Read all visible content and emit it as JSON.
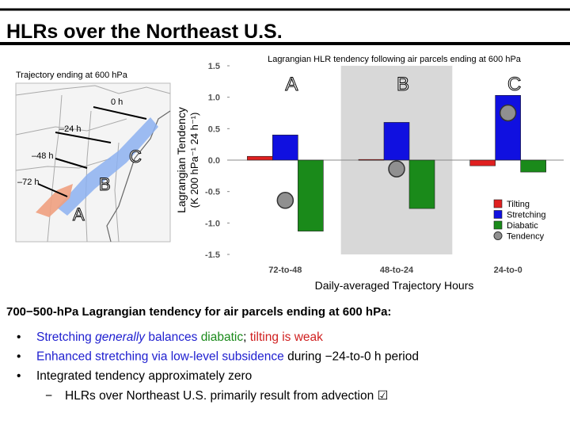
{
  "slide": {
    "title": "HLRs over the Northeast U.S.",
    "heading": "700−500-hPa Lagrangian tendency for air parcels ending at 600 hPa:",
    "bullets": [
      {
        "segments": [
          {
            "text": "Stretching ",
            "color": "#2020d0"
          },
          {
            "text": "generally",
            "color": "#2020d0",
            "italic": true
          },
          {
            "text": " balances ",
            "color": "#2020d0"
          },
          {
            "text": "diabatic",
            "color": "#1a8a1a"
          },
          {
            "text": "; ",
            "color": "#000000"
          },
          {
            "text": "tilting is weak",
            "color": "#d02020"
          }
        ]
      },
      {
        "segments": [
          {
            "text": "Enhanced stretching via low-level subsidence",
            "color": "#2020d0"
          },
          {
            "text": " during −24-to-0 h period",
            "color": "#000000"
          }
        ]
      },
      {
        "segments": [
          {
            "text": "Integrated tendency approximately zero",
            "color": "#000000"
          }
        ]
      }
    ],
    "sub_bullets": [
      {
        "segments": [
          {
            "text": "HLRs over Northeast U.S. primarily result from advection ☑",
            "color": "#000000"
          }
        ]
      }
    ]
  },
  "map": {
    "title": "Trajectory ending at 600 hPa",
    "time_labels": [
      "0 h",
      "–24 h",
      "–48 h",
      "–72 h"
    ],
    "region_labels": [
      "A",
      "B",
      "C"
    ]
  },
  "chart_data": {
    "type": "bar",
    "title": "Lagrangian HLR tendency following air parcels ending at 600 hPa",
    "xlabel": "Daily-averaged Trajectory Hours",
    "ylabel": [
      "Lagrangian Tendency",
      "(K 200 hPa⁻¹ 24 h⁻¹)"
    ],
    "categories": [
      "72-to-48",
      "48-to-24",
      "24-to-0"
    ],
    "annotations": [
      "A",
      "B",
      "C"
    ],
    "series": [
      {
        "name": "Tilting",
        "color": "#e02020",
        "values": [
          0.06,
          0.01,
          -0.09
        ]
      },
      {
        "name": "Stretching",
        "color": "#1010e0",
        "values": [
          0.4,
          0.6,
          1.03
        ]
      },
      {
        "name": "Diabatic",
        "color": "#1a8a1a",
        "values": [
          -1.13,
          -0.77,
          -0.19
        ]
      },
      {
        "name": "Tendency",
        "color": "#909090",
        "marker": "circle",
        "values": [
          -0.64,
          -0.14,
          0.75
        ]
      }
    ],
    "ylim": [
      -1.5,
      1.5
    ],
    "yticks": [
      -1.5,
      {
        "value": -1.0,
        "label": "-1.0"
      },
      -0.5,
      {
        "value": 0.0,
        "label": "0.0"
      },
      0.5,
      {
        "value": 1.0,
        "label": "1.0"
      },
      1.5
    ],
    "legend": "lower right"
  }
}
